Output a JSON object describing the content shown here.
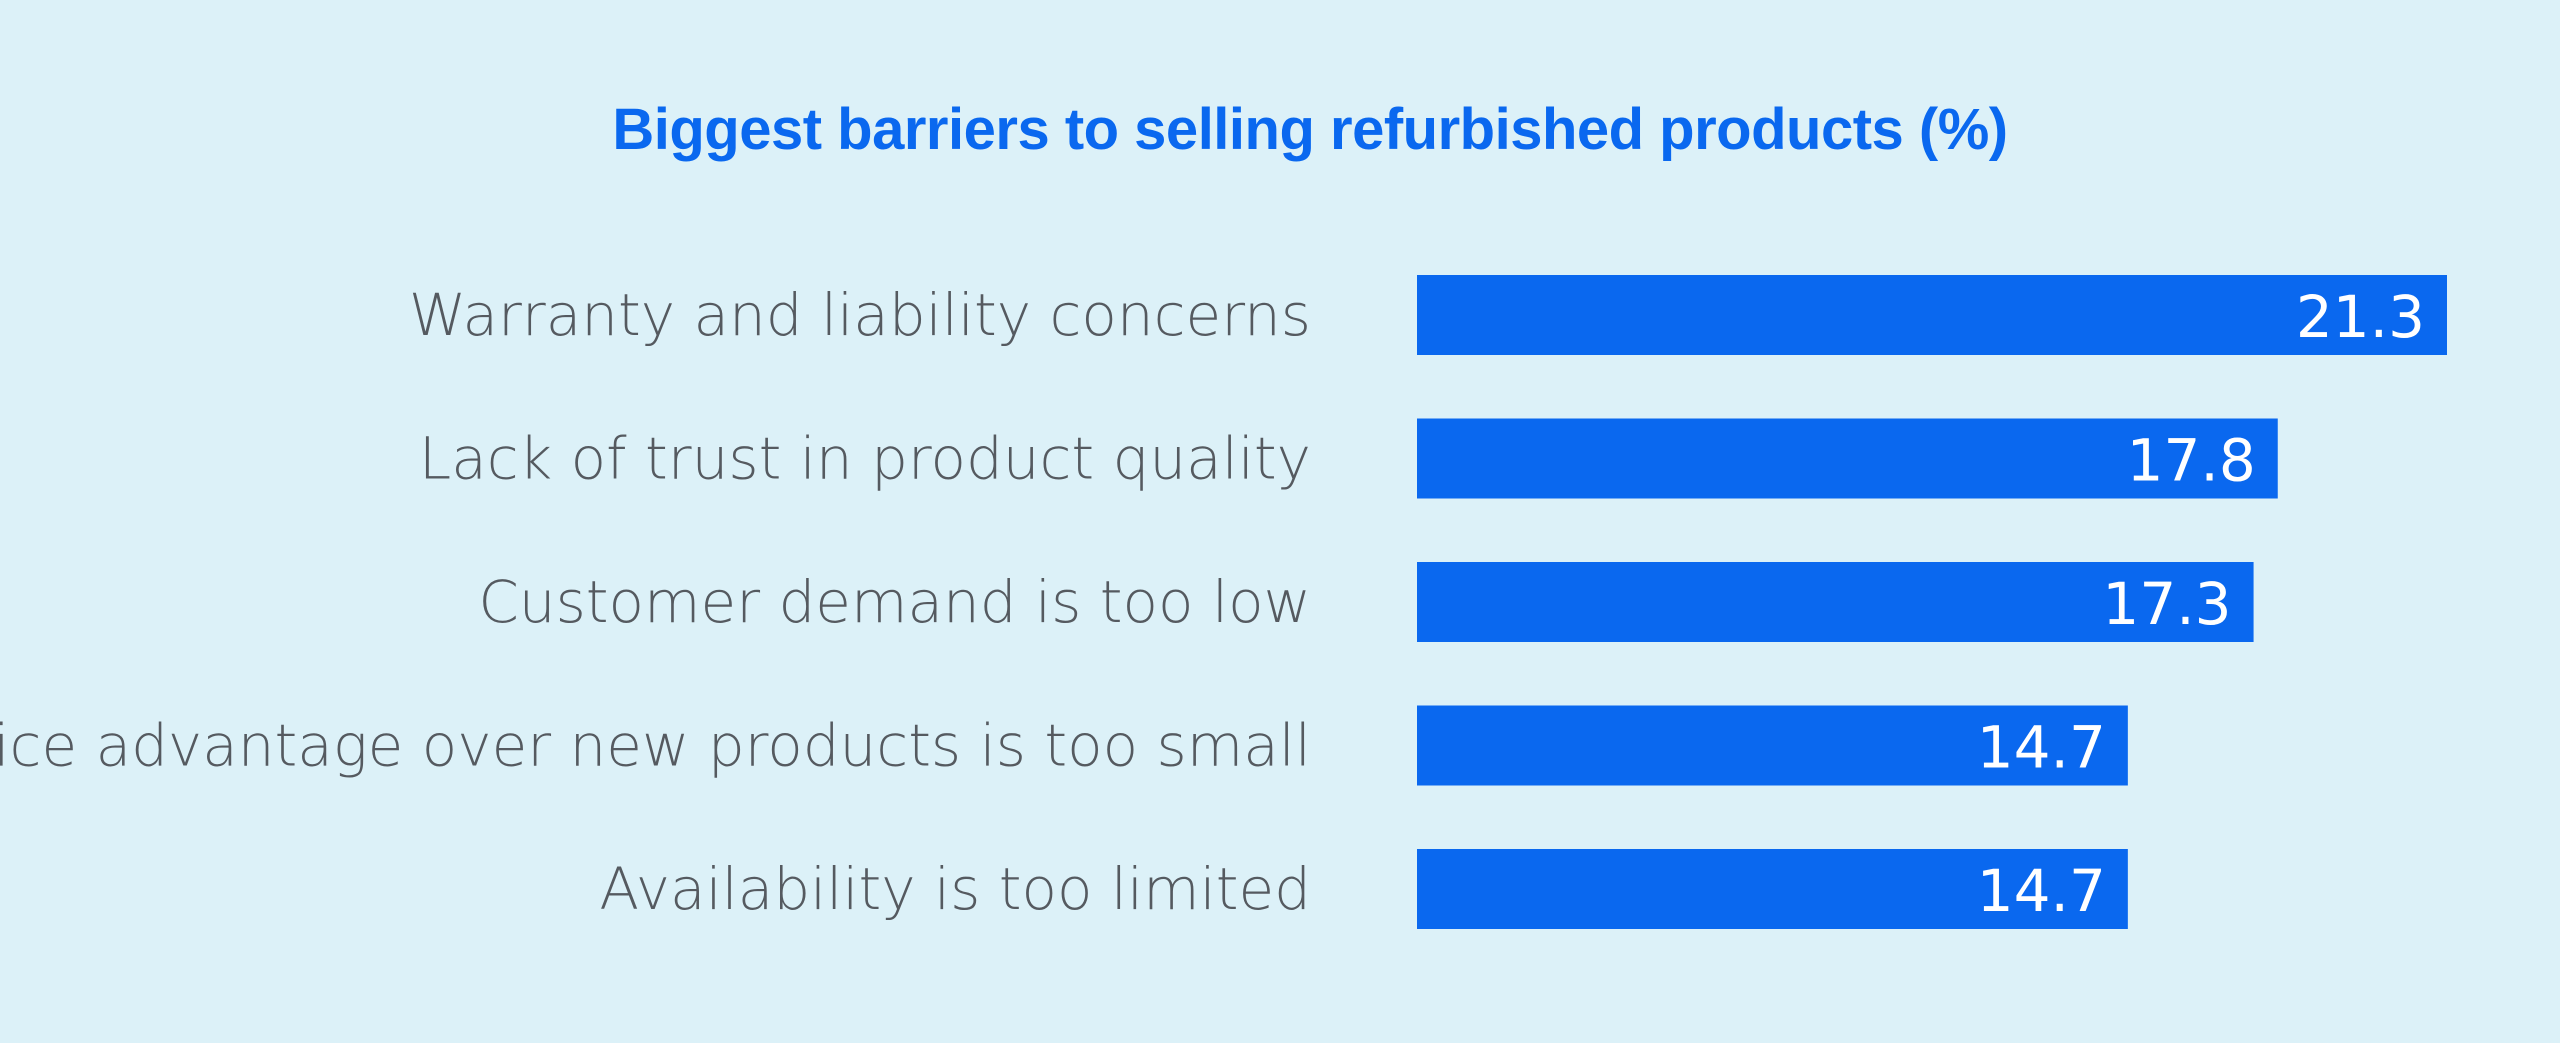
{
  "chart_data": {
    "type": "bar",
    "orientation": "horizontal",
    "title": "Biggest barriers to selling refurbished products (%)",
    "categories": [
      "Warranty and liability concerns",
      "Lack of trust in product quality",
      "Customer demand is too low",
      "Price advantage over new products is too small",
      "Availability is too limited"
    ],
    "values": [
      21.3,
      17.8,
      17.3,
      14.7,
      14.7
    ],
    "value_labels": [
      "21.3",
      "17.8",
      "17.3",
      "14.7",
      "14.7"
    ],
    "xlabel": "",
    "ylabel": "",
    "grid": false,
    "legend": "none",
    "colors": {
      "background": "#dcf1f8",
      "bar": "#0a68ef",
      "title": "#0a68ef",
      "category_text": "#555a60",
      "value_text": "#ffffff"
    }
  }
}
